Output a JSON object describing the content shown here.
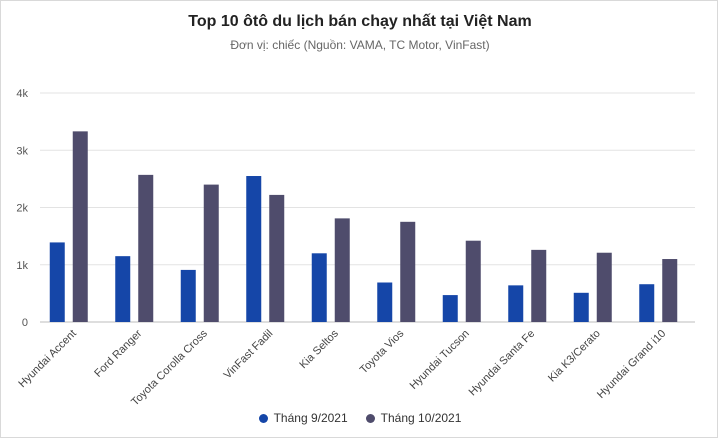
{
  "chart_data": {
    "type": "bar",
    "title": "Top 10 ôtô du lịch bán chạy nhất tại Việt Nam",
    "subtitle": "Đơn vị: chiếc (Nguồn: VAMA, TC Motor, VinFast)",
    "xlabel": "",
    "ylabel": "",
    "ylim": [
      0,
      4000
    ],
    "yticks": [
      0,
      1000,
      2000,
      3000,
      4000
    ],
    "ytick_labels": [
      "0",
      "1k",
      "2k",
      "3k",
      "4k"
    ],
    "grid": true,
    "legend_position": "bottom",
    "categories": [
      "Hyundai Accent",
      "Ford Ranger",
      "Toyota Corolla Cross",
      "VinFast Fadil",
      "Kia Seltos",
      "Toyota Vios",
      "Hyundai Tucson",
      "Hyundai Santa Fe",
      "Kia K3/Cerato",
      "Hyundai Grand i10"
    ],
    "series": [
      {
        "name": "Tháng 9/2021",
        "color": "#1546a8",
        "values": [
          1390,
          1150,
          910,
          2550,
          1200,
          690,
          470,
          640,
          510,
          660
        ]
      },
      {
        "name": "Tháng 10/2021",
        "color": "#4f4c6c",
        "values": [
          3330,
          2570,
          2400,
          2220,
          1810,
          1750,
          1420,
          1260,
          1210,
          1100
        ]
      }
    ]
  }
}
